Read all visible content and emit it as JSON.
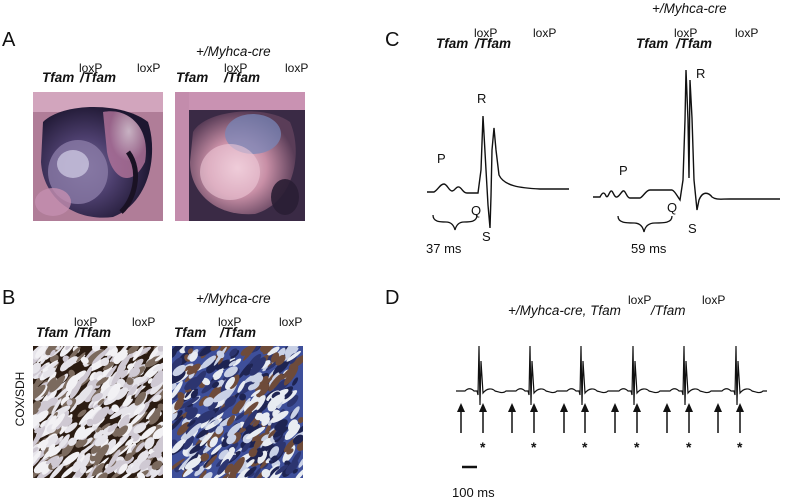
{
  "panels": {
    "A": {
      "letter": "A",
      "left_label": {
        "gene1": "Tfam",
        "sup1": "loxP",
        "slash_gene2": "/Tfam",
        "sup2": "loxP"
      },
      "right_cre": "+/Myhca-cre",
      "right_label": {
        "gene1": "Tfam",
        "sup1": "loxP",
        "slash_gene2": "/Tfam",
        "sup2": "loxP"
      }
    },
    "B": {
      "letter": "B",
      "stain_label": "COX/SDH",
      "left_label": {
        "gene1": "Tfam",
        "sup1": "loxP",
        "slash_gene2": "/Tfam",
        "sup2": "loxP"
      },
      "right_cre": "+/Myhca-cre",
      "right_label": {
        "gene1": "Tfam",
        "sup1": "loxP",
        "slash_gene2": "/Tfam",
        "sup2": "loxP"
      }
    },
    "C": {
      "letter": "C",
      "left_label": {
        "gene1": "Tfam",
        "sup1": "loxP",
        "slash_gene2": "/Tfam",
        "sup2": "loxP"
      },
      "right_cre": "+/Myhca-cre",
      "right_label": {
        "gene1": "Tfam",
        "sup1": "loxP",
        "slash_gene2": "/Tfam",
        "sup2": "loxP"
      },
      "waves": {
        "p": "P",
        "q": "Q",
        "r": "R",
        "s": "S"
      },
      "left_interval": "37 ms",
      "right_interval": "59 ms"
    },
    "D": {
      "letter": "D",
      "title": {
        "prefix": "+/Myhca-cre, Tfam",
        "sup1": "loxP",
        "mid": "/Tfam",
        "sup2": "loxP"
      },
      "star": "*",
      "scale_label": "100 ms"
    }
  },
  "colors": {
    "ink": "#111111",
    "heart_pink": "#c9909f",
    "heart_dark": "#2a2340",
    "stain_brown": "#2b1c12",
    "stain_blue": "#3e4f9a"
  }
}
